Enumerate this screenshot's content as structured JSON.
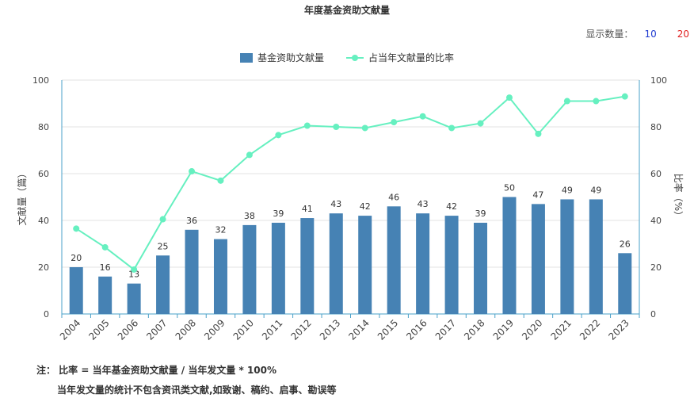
{
  "header": {
    "title": "年度基金资助文献量",
    "count_label": "显示数量：",
    "count_options": [
      "10",
      "20"
    ]
  },
  "legend": {
    "bar_label": "基金资助文献量",
    "line_label": "占当年文献量的比率"
  },
  "notes": {
    "line1": "注： 比率 = 当年基金资助文献量 / 当年发文量 * 100%",
    "line2": "当年发文量的统计不包含资讯类文献,如致谢、稿约、启事、勘误等"
  },
  "colors": {
    "bar": "#4682b4",
    "line": "#66f0c0",
    "axis": "#4aa0c8"
  },
  "chart_data": {
    "type": "bar",
    "title": "年度基金资助文献量",
    "categories": [
      "2004",
      "2005",
      "2006",
      "2007",
      "2008",
      "2009",
      "2010",
      "2011",
      "2012",
      "2013",
      "2014",
      "2015",
      "2016",
      "2017",
      "2018",
      "2019",
      "2020",
      "2021",
      "2022",
      "2023"
    ],
    "series": [
      {
        "name": "基金资助文献量",
        "type": "bar",
        "axis": "left",
        "values": [
          20,
          16,
          13,
          25,
          36,
          32,
          38,
          39,
          41,
          43,
          42,
          46,
          43,
          42,
          39,
          50,
          47,
          49,
          49,
          26
        ]
      },
      {
        "name": "占当年文献量的比率",
        "type": "line",
        "axis": "right",
        "values": [
          36.5,
          28.5,
          19,
          40.5,
          61,
          57,
          68,
          76.5,
          80.5,
          80,
          79.5,
          82,
          84.5,
          79.5,
          81.5,
          92.5,
          77,
          91,
          91,
          93
        ]
      }
    ],
    "ylabel_left": "文献量（篇）",
    "ylabel_right": "比率（%）",
    "ylim_left": [
      0,
      100
    ],
    "ylim_right": [
      0,
      100
    ],
    "yticks": [
      "0",
      "20",
      "40",
      "60",
      "80",
      "100"
    ],
    "grid": true,
    "legend_position": "top-center"
  }
}
